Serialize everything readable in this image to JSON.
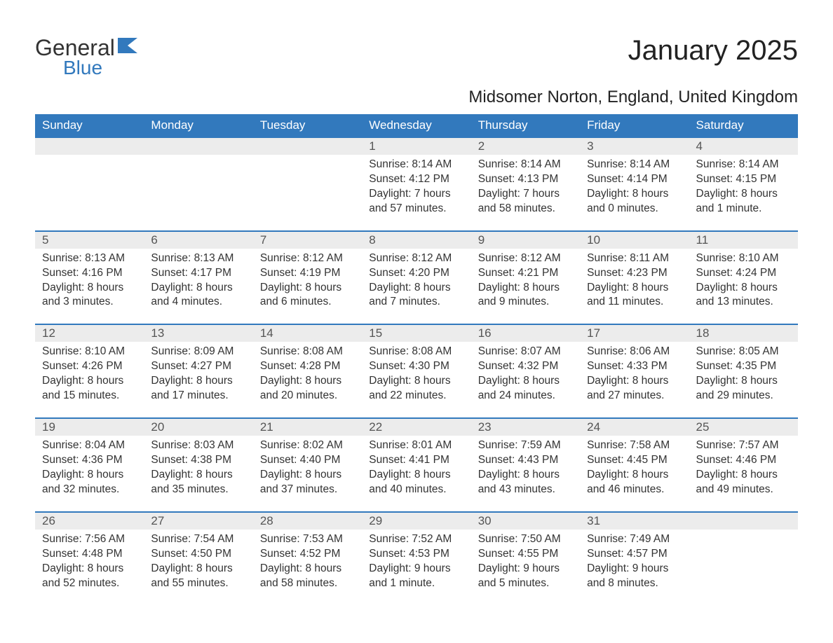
{
  "logo": {
    "text1": "General",
    "text2": "Blue",
    "accent_color": "#3279bd"
  },
  "title": "January 2025",
  "location": "Midsomer Norton, England, United Kingdom",
  "colors": {
    "header_bg": "#3279bd",
    "header_text": "#ffffff",
    "daynum_bg": "#ececec",
    "border": "#3279bd",
    "body_text": "#333333",
    "background": "#ffffff"
  },
  "fonts": {
    "title_size": 40,
    "location_size": 24,
    "header_size": 17,
    "body_size": 15.5
  },
  "weekdays": [
    "Sunday",
    "Monday",
    "Tuesday",
    "Wednesday",
    "Thursday",
    "Friday",
    "Saturday"
  ],
  "weeks": [
    [
      null,
      null,
      null,
      {
        "day": "1",
        "sunrise": "Sunrise: 8:14 AM",
        "sunset": "Sunset: 4:12 PM",
        "daylight1": "Daylight: 7 hours",
        "daylight2": "and 57 minutes."
      },
      {
        "day": "2",
        "sunrise": "Sunrise: 8:14 AM",
        "sunset": "Sunset: 4:13 PM",
        "daylight1": "Daylight: 7 hours",
        "daylight2": "and 58 minutes."
      },
      {
        "day": "3",
        "sunrise": "Sunrise: 8:14 AM",
        "sunset": "Sunset: 4:14 PM",
        "daylight1": "Daylight: 8 hours",
        "daylight2": "and 0 minutes."
      },
      {
        "day": "4",
        "sunrise": "Sunrise: 8:14 AM",
        "sunset": "Sunset: 4:15 PM",
        "daylight1": "Daylight: 8 hours",
        "daylight2": "and 1 minute."
      }
    ],
    [
      {
        "day": "5",
        "sunrise": "Sunrise: 8:13 AM",
        "sunset": "Sunset: 4:16 PM",
        "daylight1": "Daylight: 8 hours",
        "daylight2": "and 3 minutes."
      },
      {
        "day": "6",
        "sunrise": "Sunrise: 8:13 AM",
        "sunset": "Sunset: 4:17 PM",
        "daylight1": "Daylight: 8 hours",
        "daylight2": "and 4 minutes."
      },
      {
        "day": "7",
        "sunrise": "Sunrise: 8:12 AM",
        "sunset": "Sunset: 4:19 PM",
        "daylight1": "Daylight: 8 hours",
        "daylight2": "and 6 minutes."
      },
      {
        "day": "8",
        "sunrise": "Sunrise: 8:12 AM",
        "sunset": "Sunset: 4:20 PM",
        "daylight1": "Daylight: 8 hours",
        "daylight2": "and 7 minutes."
      },
      {
        "day": "9",
        "sunrise": "Sunrise: 8:12 AM",
        "sunset": "Sunset: 4:21 PM",
        "daylight1": "Daylight: 8 hours",
        "daylight2": "and 9 minutes."
      },
      {
        "day": "10",
        "sunrise": "Sunrise: 8:11 AM",
        "sunset": "Sunset: 4:23 PM",
        "daylight1": "Daylight: 8 hours",
        "daylight2": "and 11 minutes."
      },
      {
        "day": "11",
        "sunrise": "Sunrise: 8:10 AM",
        "sunset": "Sunset: 4:24 PM",
        "daylight1": "Daylight: 8 hours",
        "daylight2": "and 13 minutes."
      }
    ],
    [
      {
        "day": "12",
        "sunrise": "Sunrise: 8:10 AM",
        "sunset": "Sunset: 4:26 PM",
        "daylight1": "Daylight: 8 hours",
        "daylight2": "and 15 minutes."
      },
      {
        "day": "13",
        "sunrise": "Sunrise: 8:09 AM",
        "sunset": "Sunset: 4:27 PM",
        "daylight1": "Daylight: 8 hours",
        "daylight2": "and 17 minutes."
      },
      {
        "day": "14",
        "sunrise": "Sunrise: 8:08 AM",
        "sunset": "Sunset: 4:28 PM",
        "daylight1": "Daylight: 8 hours",
        "daylight2": "and 20 minutes."
      },
      {
        "day": "15",
        "sunrise": "Sunrise: 8:08 AM",
        "sunset": "Sunset: 4:30 PM",
        "daylight1": "Daylight: 8 hours",
        "daylight2": "and 22 minutes."
      },
      {
        "day": "16",
        "sunrise": "Sunrise: 8:07 AM",
        "sunset": "Sunset: 4:32 PM",
        "daylight1": "Daylight: 8 hours",
        "daylight2": "and 24 minutes."
      },
      {
        "day": "17",
        "sunrise": "Sunrise: 8:06 AM",
        "sunset": "Sunset: 4:33 PM",
        "daylight1": "Daylight: 8 hours",
        "daylight2": "and 27 minutes."
      },
      {
        "day": "18",
        "sunrise": "Sunrise: 8:05 AM",
        "sunset": "Sunset: 4:35 PM",
        "daylight1": "Daylight: 8 hours",
        "daylight2": "and 29 minutes."
      }
    ],
    [
      {
        "day": "19",
        "sunrise": "Sunrise: 8:04 AM",
        "sunset": "Sunset: 4:36 PM",
        "daylight1": "Daylight: 8 hours",
        "daylight2": "and 32 minutes."
      },
      {
        "day": "20",
        "sunrise": "Sunrise: 8:03 AM",
        "sunset": "Sunset: 4:38 PM",
        "daylight1": "Daylight: 8 hours",
        "daylight2": "and 35 minutes."
      },
      {
        "day": "21",
        "sunrise": "Sunrise: 8:02 AM",
        "sunset": "Sunset: 4:40 PM",
        "daylight1": "Daylight: 8 hours",
        "daylight2": "and 37 minutes."
      },
      {
        "day": "22",
        "sunrise": "Sunrise: 8:01 AM",
        "sunset": "Sunset: 4:41 PM",
        "daylight1": "Daylight: 8 hours",
        "daylight2": "and 40 minutes."
      },
      {
        "day": "23",
        "sunrise": "Sunrise: 7:59 AM",
        "sunset": "Sunset: 4:43 PM",
        "daylight1": "Daylight: 8 hours",
        "daylight2": "and 43 minutes."
      },
      {
        "day": "24",
        "sunrise": "Sunrise: 7:58 AM",
        "sunset": "Sunset: 4:45 PM",
        "daylight1": "Daylight: 8 hours",
        "daylight2": "and 46 minutes."
      },
      {
        "day": "25",
        "sunrise": "Sunrise: 7:57 AM",
        "sunset": "Sunset: 4:46 PM",
        "daylight1": "Daylight: 8 hours",
        "daylight2": "and 49 minutes."
      }
    ],
    [
      {
        "day": "26",
        "sunrise": "Sunrise: 7:56 AM",
        "sunset": "Sunset: 4:48 PM",
        "daylight1": "Daylight: 8 hours",
        "daylight2": "and 52 minutes."
      },
      {
        "day": "27",
        "sunrise": "Sunrise: 7:54 AM",
        "sunset": "Sunset: 4:50 PM",
        "daylight1": "Daylight: 8 hours",
        "daylight2": "and 55 minutes."
      },
      {
        "day": "28",
        "sunrise": "Sunrise: 7:53 AM",
        "sunset": "Sunset: 4:52 PM",
        "daylight1": "Daylight: 8 hours",
        "daylight2": "and 58 minutes."
      },
      {
        "day": "29",
        "sunrise": "Sunrise: 7:52 AM",
        "sunset": "Sunset: 4:53 PM",
        "daylight1": "Daylight: 9 hours",
        "daylight2": "and 1 minute."
      },
      {
        "day": "30",
        "sunrise": "Sunrise: 7:50 AM",
        "sunset": "Sunset: 4:55 PM",
        "daylight1": "Daylight: 9 hours",
        "daylight2": "and 5 minutes."
      },
      {
        "day": "31",
        "sunrise": "Sunrise: 7:49 AM",
        "sunset": "Sunset: 4:57 PM",
        "daylight1": "Daylight: 9 hours",
        "daylight2": "and 8 minutes."
      },
      null
    ]
  ]
}
